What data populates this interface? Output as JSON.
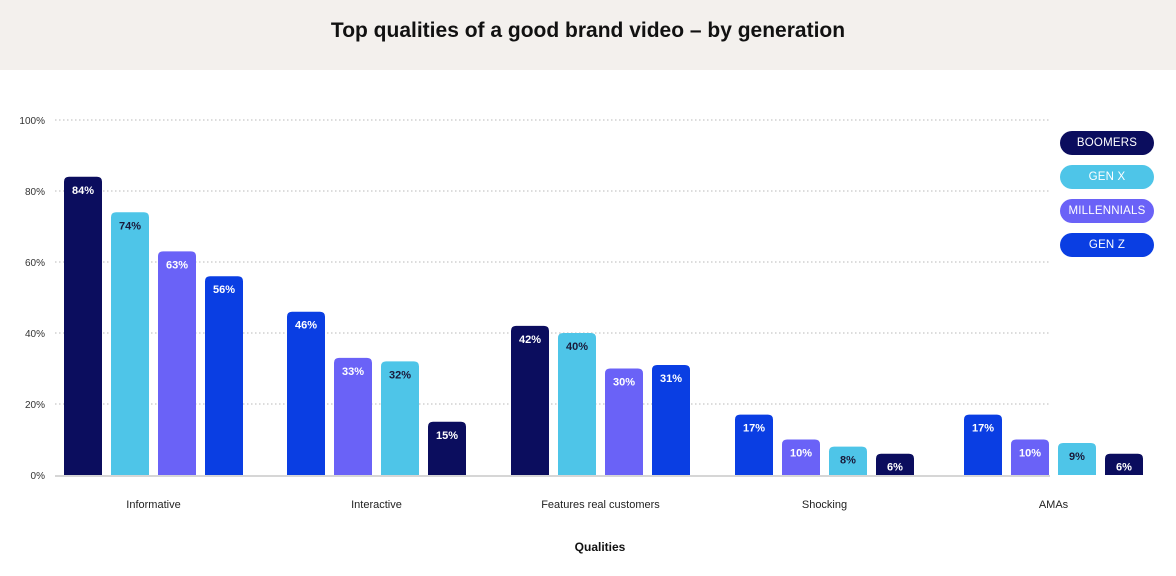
{
  "chart_data": {
    "type": "bar",
    "title": "Top qualities of a good brand video – by generation",
    "xlabel": "Qualities",
    "ylabel": "",
    "ylim": [
      0,
      100
    ],
    "yticks": [
      "0%",
      "20%",
      "40%",
      "60%",
      "80%",
      "100%"
    ],
    "ytick_values": [
      0,
      20,
      40,
      60,
      80,
      100
    ],
    "grid": true,
    "legend_position": "top-right",
    "categories": [
      "Informative",
      "Interactive",
      "Features real customers",
      "Shocking",
      "AMAs"
    ],
    "legend": [
      {
        "name": "BOOMERS",
        "color": "#0b0d5e"
      },
      {
        "name": "GEN X",
        "color": "#4ec5e8"
      },
      {
        "name": "MILLENNIALS",
        "color": "#6a62f7"
      },
      {
        "name": "GEN Z",
        "color": "#0a3ee3"
      }
    ],
    "groups": [
      {
        "category": "Informative",
        "bars": [
          {
            "series": "BOOMERS",
            "value": 84,
            "label": "84%"
          },
          {
            "series": "GEN X",
            "value": 74,
            "label": "74%"
          },
          {
            "series": "MILLENNIALS",
            "value": 63,
            "label": "63%"
          },
          {
            "series": "GEN Z",
            "value": 56,
            "label": "56%"
          }
        ]
      },
      {
        "category": "Interactive",
        "bars": [
          {
            "series": "GEN Z",
            "value": 46,
            "label": "46%"
          },
          {
            "series": "MILLENNIALS",
            "value": 33,
            "label": "33%"
          },
          {
            "series": "GEN X",
            "value": 32,
            "label": "32%"
          },
          {
            "series": "BOOMERS",
            "value": 15,
            "label": "15%"
          }
        ]
      },
      {
        "category": "Features real customers",
        "bars": [
          {
            "series": "BOOMERS",
            "value": 42,
            "label": "42%"
          },
          {
            "series": "GEN X",
            "value": 40,
            "label": "40%"
          },
          {
            "series": "MILLENNIALS",
            "value": 30,
            "label": "30%"
          },
          {
            "series": "GEN Z",
            "value": 31,
            "label": "31%"
          }
        ]
      },
      {
        "category": "Shocking",
        "bars": [
          {
            "series": "GEN Z",
            "value": 17,
            "label": "17%"
          },
          {
            "series": "MILLENNIALS",
            "value": 10,
            "label": "10%"
          },
          {
            "series": "GEN X",
            "value": 8,
            "label": "8%"
          },
          {
            "series": "BOOMERS",
            "value": 6,
            "label": "6%"
          }
        ]
      },
      {
        "category": "AMAs",
        "bars": [
          {
            "series": "GEN Z",
            "value": 17,
            "label": "17%"
          },
          {
            "series": "MILLENNIALS",
            "value": 10,
            "label": "10%"
          },
          {
            "series": "GEN X",
            "value": 9,
            "label": "9%"
          },
          {
            "series": "BOOMERS",
            "value": 6,
            "label": "6%"
          }
        ]
      }
    ]
  }
}
